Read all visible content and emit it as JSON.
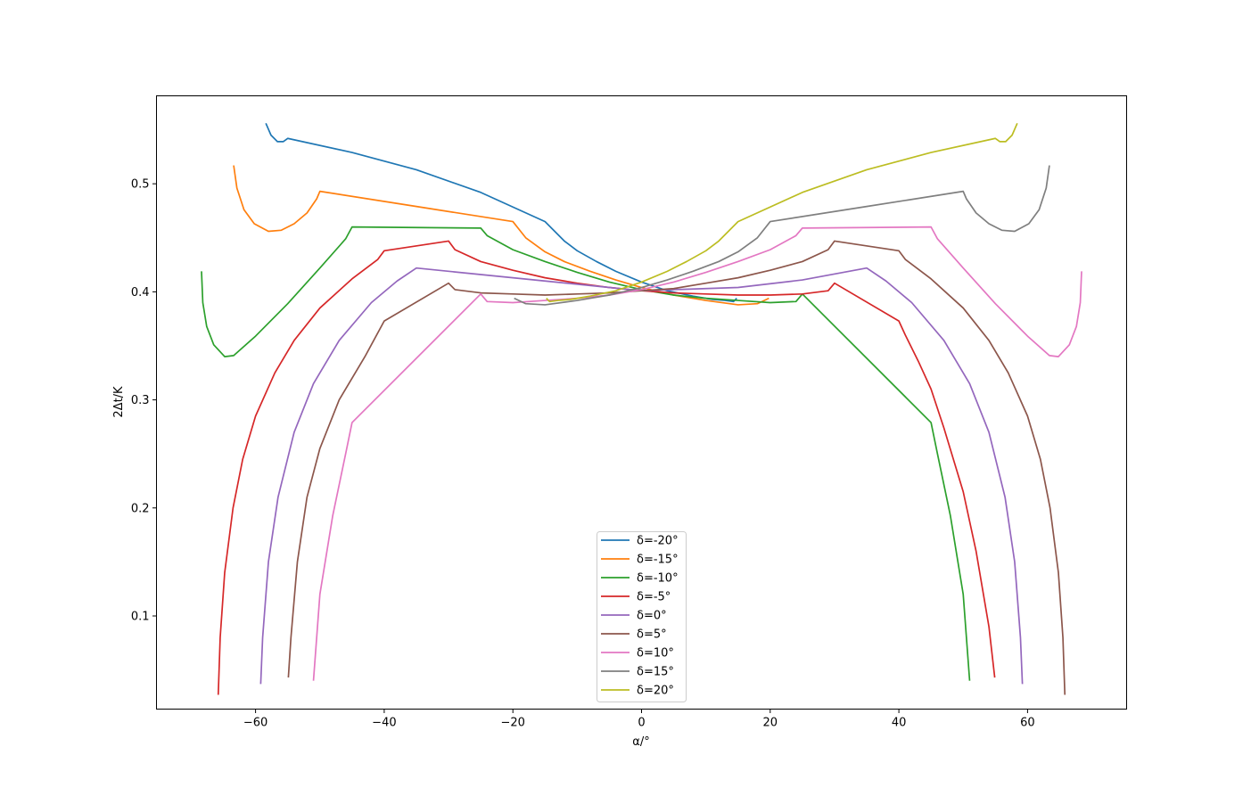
{
  "chart_data": {
    "type": "line",
    "title": "",
    "xlabel": "α/°",
    "ylabel": "2Δt/K",
    "xlim": [
      -75.4,
      75.4
    ],
    "ylim": [
      0.0138,
      0.5814
    ],
    "xticks": [
      -60,
      -40,
      -20,
      0,
      20,
      40,
      60
    ],
    "xtick_labels": [
      "−60",
      "−40",
      "−20",
      "0",
      "20",
      "40",
      "60"
    ],
    "yticks": [
      0.1,
      0.2,
      0.3,
      0.4,
      0.5
    ],
    "ytick_labels": [
      "0.1",
      "0.2",
      "0.3",
      "0.4",
      "0.5"
    ],
    "grid": false,
    "legend": "lower-center",
    "series": [
      {
        "name": "δ=-20°",
        "color": "#1f77b4",
        "points": [
          [
            -58.4,
            0.556
          ],
          [
            -57.6,
            0.545
          ],
          [
            -56.6,
            0.539
          ],
          [
            -55.7,
            0.539
          ],
          [
            -55.0,
            0.542
          ],
          [
            -45,
            0.529
          ],
          [
            -35,
            0.513
          ],
          [
            -25,
            0.492
          ],
          [
            -15,
            0.465
          ],
          [
            -14,
            0.459
          ],
          [
            -12,
            0.447
          ],
          [
            -10,
            0.438
          ],
          [
            -7,
            0.428
          ],
          [
            -4,
            0.419
          ],
          [
            0,
            0.409
          ],
          [
            4,
            0.401
          ],
          [
            8,
            0.396
          ],
          [
            11,
            0.393
          ],
          [
            13,
            0.392
          ],
          [
            14.3,
            0.391
          ],
          [
            14.8,
            0.394
          ]
        ]
      },
      {
        "name": "δ=-15°",
        "color": "#ff7f0e",
        "points": [
          [
            -63.4,
            0.517
          ],
          [
            -62.9,
            0.496
          ],
          [
            -61.8,
            0.476
          ],
          [
            -60.2,
            0.463
          ],
          [
            -58,
            0.456
          ],
          [
            -56,
            0.457
          ],
          [
            -54,
            0.463
          ],
          [
            -52,
            0.473
          ],
          [
            -50.5,
            0.486
          ],
          [
            -50,
            0.493
          ],
          [
            -35,
            0.479
          ],
          [
            -20,
            0.465
          ],
          [
            -18,
            0.45
          ],
          [
            -15,
            0.437
          ],
          [
            -12,
            0.428
          ],
          [
            -8,
            0.419
          ],
          [
            -4,
            0.411
          ],
          [
            0,
            0.404
          ],
          [
            5,
            0.397
          ],
          [
            10,
            0.392
          ],
          [
            15,
            0.388
          ],
          [
            18,
            0.389
          ],
          [
            19.8,
            0.394
          ]
        ]
      },
      {
        "name": "δ=-10°",
        "color": "#2ca02c",
        "points": [
          [
            -68.4,
            0.419
          ],
          [
            -68.2,
            0.39
          ],
          [
            -67.6,
            0.368
          ],
          [
            -66.5,
            0.351
          ],
          [
            -64.8,
            0.34
          ],
          [
            -63.4,
            0.341
          ],
          [
            -60,
            0.359
          ],
          [
            -55,
            0.389
          ],
          [
            -50,
            0.422
          ],
          [
            -46,
            0.449
          ],
          [
            -45,
            0.46
          ],
          [
            -25,
            0.459
          ],
          [
            -24,
            0.452
          ],
          [
            -20,
            0.439
          ],
          [
            -15,
            0.428
          ],
          [
            -10,
            0.418
          ],
          [
            -5,
            0.409
          ],
          [
            0,
            0.402
          ],
          [
            5,
            0.397
          ],
          [
            10,
            0.394
          ],
          [
            15,
            0.392
          ],
          [
            20,
            0.39
          ],
          [
            24,
            0.391
          ],
          [
            25,
            0.398
          ],
          [
            45,
            0.279
          ],
          [
            46,
            0.25
          ],
          [
            48,
            0.193
          ],
          [
            50,
            0.12
          ],
          [
            51,
            0.04
          ]
        ]
      },
      {
        "name": "δ=-5°",
        "color": "#d62728",
        "points": [
          [
            -65.8,
            0.027
          ],
          [
            -65.5,
            0.08
          ],
          [
            -64.8,
            0.14
          ],
          [
            -63.5,
            0.2
          ],
          [
            -62,
            0.245
          ],
          [
            -60,
            0.285
          ],
          [
            -57,
            0.325
          ],
          [
            -54,
            0.355
          ],
          [
            -50,
            0.385
          ],
          [
            -45,
            0.412
          ],
          [
            -41,
            0.43
          ],
          [
            -40,
            0.438
          ],
          [
            -30,
            0.447
          ],
          [
            -29,
            0.439
          ],
          [
            -25,
            0.428
          ],
          [
            -20,
            0.42
          ],
          [
            -15,
            0.413
          ],
          [
            -10,
            0.408
          ],
          [
            -5,
            0.404
          ],
          [
            0,
            0.401
          ],
          [
            5,
            0.399
          ],
          [
            10,
            0.398
          ],
          [
            15,
            0.397
          ],
          [
            20,
            0.397
          ],
          [
            25,
            0.398
          ],
          [
            29,
            0.401
          ],
          [
            30,
            0.408
          ],
          [
            40,
            0.373
          ],
          [
            41,
            0.36
          ],
          [
            43,
            0.336
          ],
          [
            45,
            0.31
          ],
          [
            47,
            0.274
          ],
          [
            50,
            0.215
          ],
          [
            52,
            0.16
          ],
          [
            54,
            0.09
          ],
          [
            54.9,
            0.043
          ]
        ]
      },
      {
        "name": "δ=0°",
        "color": "#9467bd",
        "points": [
          [
            -59.2,
            0.037
          ],
          [
            -58.9,
            0.08
          ],
          [
            -58,
            0.15
          ],
          [
            -56.5,
            0.21
          ],
          [
            -54,
            0.27
          ],
          [
            -51,
            0.315
          ],
          [
            -47,
            0.355
          ],
          [
            -42,
            0.39
          ],
          [
            -38,
            0.41
          ],
          [
            -35,
            0.422
          ],
          [
            -25,
            0.416
          ],
          [
            -15,
            0.41
          ],
          [
            -5,
            0.404
          ],
          [
            0,
            0.401
          ],
          [
            5,
            0.402
          ],
          [
            15,
            0.404
          ],
          [
            25,
            0.411
          ],
          [
            35,
            0.422
          ],
          [
            38,
            0.41
          ],
          [
            42,
            0.39
          ],
          [
            47,
            0.355
          ],
          [
            51,
            0.315
          ],
          [
            54,
            0.27
          ],
          [
            56.5,
            0.21
          ],
          [
            58,
            0.15
          ],
          [
            58.9,
            0.08
          ],
          [
            59.2,
            0.037
          ]
        ]
      },
      {
        "name": "δ=5°",
        "color": "#8c564b",
        "points": [
          [
            -54.9,
            0.043
          ],
          [
            -54.5,
            0.08
          ],
          [
            -53.5,
            0.15
          ],
          [
            -52,
            0.21
          ],
          [
            -50,
            0.255
          ],
          [
            -47,
            0.3
          ],
          [
            -43,
            0.34
          ],
          [
            -40,
            0.373
          ],
          [
            -30,
            0.408
          ],
          [
            -29,
            0.402
          ],
          [
            -25,
            0.399
          ],
          [
            -20,
            0.398
          ],
          [
            -15,
            0.397
          ],
          [
            -10,
            0.398
          ],
          [
            -5,
            0.399
          ],
          [
            0,
            0.401
          ],
          [
            5,
            0.403
          ],
          [
            10,
            0.408
          ],
          [
            15,
            0.413
          ],
          [
            20,
            0.42
          ],
          [
            25,
            0.428
          ],
          [
            29,
            0.439
          ],
          [
            30,
            0.447
          ],
          [
            40,
            0.438
          ],
          [
            41,
            0.43
          ],
          [
            45,
            0.412
          ],
          [
            50,
            0.385
          ],
          [
            54,
            0.355
          ],
          [
            57,
            0.325
          ],
          [
            60,
            0.285
          ],
          [
            62,
            0.245
          ],
          [
            63.5,
            0.2
          ],
          [
            64.8,
            0.14
          ],
          [
            65.5,
            0.08
          ],
          [
            65.8,
            0.027
          ]
        ]
      },
      {
        "name": "δ=10°",
        "color": "#e377c2",
        "points": [
          [
            -51,
            0.04
          ],
          [
            -50,
            0.12
          ],
          [
            -48,
            0.193
          ],
          [
            -46,
            0.25
          ],
          [
            -45,
            0.279
          ],
          [
            -25,
            0.398
          ],
          [
            -24,
            0.391
          ],
          [
            -20,
            0.39
          ],
          [
            -15,
            0.392
          ],
          [
            -10,
            0.394
          ],
          [
            -5,
            0.397
          ],
          [
            0,
            0.402
          ],
          [
            5,
            0.409
          ],
          [
            10,
            0.418
          ],
          [
            15,
            0.428
          ],
          [
            20,
            0.439
          ],
          [
            24,
            0.452
          ],
          [
            25,
            0.459
          ],
          [
            45,
            0.46
          ],
          [
            46,
            0.449
          ],
          [
            50,
            0.422
          ],
          [
            55,
            0.389
          ],
          [
            60,
            0.359
          ],
          [
            63.4,
            0.341
          ],
          [
            64.8,
            0.34
          ],
          [
            66.5,
            0.351
          ],
          [
            67.6,
            0.368
          ],
          [
            68.2,
            0.39
          ],
          [
            68.4,
            0.419
          ]
        ]
      },
      {
        "name": "δ=15°",
        "color": "#7f7f7f",
        "points": [
          [
            -19.8,
            0.394
          ],
          [
            -18,
            0.389
          ],
          [
            -15,
            0.388
          ],
          [
            -10,
            0.392
          ],
          [
            -5,
            0.397
          ],
          [
            0,
            0.404
          ],
          [
            4,
            0.411
          ],
          [
            8,
            0.419
          ],
          [
            12,
            0.428
          ],
          [
            15,
            0.437
          ],
          [
            18,
            0.45
          ],
          [
            20,
            0.465
          ],
          [
            35,
            0.479
          ],
          [
            50,
            0.493
          ],
          [
            50.5,
            0.486
          ],
          [
            52,
            0.473
          ],
          [
            54,
            0.463
          ],
          [
            56,
            0.457
          ],
          [
            58,
            0.456
          ],
          [
            60.2,
            0.463
          ],
          [
            61.8,
            0.476
          ],
          [
            62.9,
            0.496
          ],
          [
            63.4,
            0.517
          ]
        ]
      },
      {
        "name": "δ=20°",
        "color": "#bcbd22",
        "points": [
          [
            -14.8,
            0.394
          ],
          [
            -14.3,
            0.391
          ],
          [
            -13,
            0.392
          ],
          [
            -11,
            0.393
          ],
          [
            -8,
            0.396
          ],
          [
            -4,
            0.401
          ],
          [
            0,
            0.409
          ],
          [
            4,
            0.419
          ],
          [
            7,
            0.428
          ],
          [
            10,
            0.438
          ],
          [
            12,
            0.447
          ],
          [
            14,
            0.459
          ],
          [
            15,
            0.465
          ],
          [
            25,
            0.492
          ],
          [
            35,
            0.513
          ],
          [
            45,
            0.529
          ],
          [
            55,
            0.542
          ],
          [
            55.7,
            0.539
          ],
          [
            56.6,
            0.539
          ],
          [
            57.6,
            0.545
          ],
          [
            58.4,
            0.556
          ]
        ]
      }
    ]
  }
}
